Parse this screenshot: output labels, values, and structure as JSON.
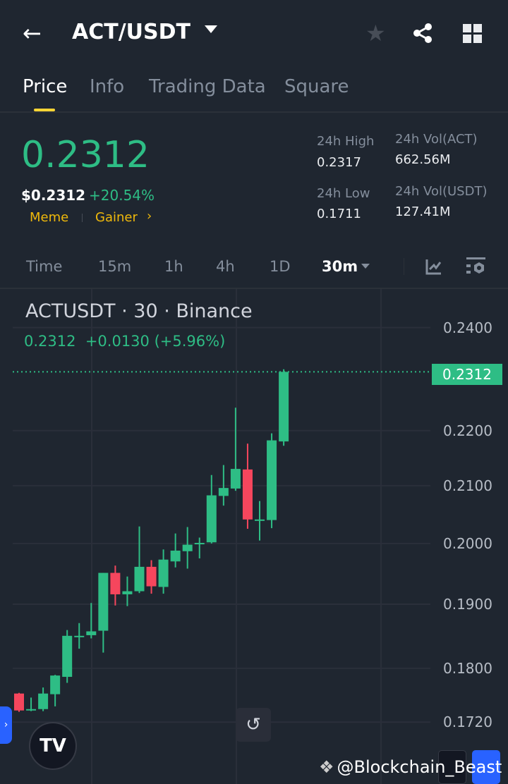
{
  "header": {
    "title": "ACT/USDT",
    "icons": [
      "back-arrow-icon",
      "dropdown-caret-icon",
      "star-icon",
      "share-icon",
      "grid-icon"
    ]
  },
  "tabs": [
    {
      "label": "Price",
      "active": true
    },
    {
      "label": "Info"
    },
    {
      "label": "Trading Data"
    },
    {
      "label": "Square"
    }
  ],
  "ticker": {
    "last_price": "0.2312",
    "usd_price": "$0.2312",
    "change_pct": "+20.54%",
    "tags": [
      "Meme",
      "Gainer"
    ],
    "stats": [
      {
        "label": "24h High",
        "value": "0.2317"
      },
      {
        "label": "24h Vol(ACT)",
        "value": "662.56M"
      },
      {
        "label": "24h Low",
        "value": "0.1711"
      },
      {
        "label": "24h Vol(USDT)",
        "value": "127.41M"
      }
    ]
  },
  "timeframes": {
    "items": [
      "Time",
      "15m",
      "1h",
      "4h",
      "1D"
    ],
    "selected": "30m"
  },
  "colors": {
    "up": "#2ebd85",
    "down": "#f6465d",
    "accent": "#fcd535",
    "bg": "#1f2630"
  },
  "chart_data": {
    "type": "candlestick",
    "title": "ACTUSDT · 30 · Binance",
    "legend": "0.2312  +0.0130 (+5.96%)",
    "y_scale": "log",
    "ylim": [
      0.165,
      0.245
    ],
    "y_ticks": [
      "0.2400",
      "0.2200",
      "0.2100",
      "0.2000",
      "0.1900",
      "0.1800",
      "0.1720"
    ],
    "y_tick_values": [
      0.24,
      0.22,
      0.21,
      0.2,
      0.19,
      0.18,
      0.172
    ],
    "last_price_label": "0.2312",
    "last_price": 0.2312,
    "grid": true,
    "candles": [
      {
        "o": 0.1762,
        "h": 0.1763,
        "l": 0.1735,
        "c": 0.1737
      },
      {
        "o": 0.1738,
        "h": 0.1756,
        "l": 0.1736,
        "c": 0.1739
      },
      {
        "o": 0.1739,
        "h": 0.1771,
        "l": 0.1736,
        "c": 0.1762
      },
      {
        "o": 0.1761,
        "h": 0.179,
        "l": 0.1743,
        "c": 0.1789
      },
      {
        "o": 0.1787,
        "h": 0.1859,
        "l": 0.1778,
        "c": 0.185
      },
      {
        "o": 0.1848,
        "h": 0.187,
        "l": 0.183,
        "c": 0.185
      },
      {
        "o": 0.1851,
        "h": 0.1902,
        "l": 0.1846,
        "c": 0.1857
      },
      {
        "o": 0.1858,
        "h": 0.1951,
        "l": 0.1824,
        "c": 0.1951
      },
      {
        "o": 0.1951,
        "h": 0.1963,
        "l": 0.1898,
        "c": 0.1916
      },
      {
        "o": 0.1916,
        "h": 0.1945,
        "l": 0.1897,
        "c": 0.1921
      },
      {
        "o": 0.1921,
        "h": 0.2029,
        "l": 0.1918,
        "c": 0.1961
      },
      {
        "o": 0.1961,
        "h": 0.1972,
        "l": 0.1917,
        "c": 0.1929
      },
      {
        "o": 0.1928,
        "h": 0.199,
        "l": 0.1917,
        "c": 0.1973
      },
      {
        "o": 0.197,
        "h": 0.2017,
        "l": 0.196,
        "c": 0.1988
      },
      {
        "o": 0.1987,
        "h": 0.2028,
        "l": 0.1958,
        "c": 0.1998
      },
      {
        "o": 0.1999,
        "h": 0.201,
        "l": 0.1975,
        "c": 0.2001
      },
      {
        "o": 0.2002,
        "h": 0.2119,
        "l": 0.2,
        "c": 0.2083
      },
      {
        "o": 0.2082,
        "h": 0.2137,
        "l": 0.2065,
        "c": 0.2096
      },
      {
        "o": 0.2095,
        "h": 0.2243,
        "l": 0.2091,
        "c": 0.213
      },
      {
        "o": 0.2129,
        "h": 0.2176,
        "l": 0.2025,
        "c": 0.2041
      },
      {
        "o": 0.204,
        "h": 0.2073,
        "l": 0.2005,
        "c": 0.2041
      },
      {
        "o": 0.204,
        "h": 0.2195,
        "l": 0.2026,
        "c": 0.2182
      },
      {
        "o": 0.218,
        "h": 0.2317,
        "l": 0.2172,
        "c": 0.2312
      }
    ]
  },
  "watermark": "@Blockchain_Beast"
}
